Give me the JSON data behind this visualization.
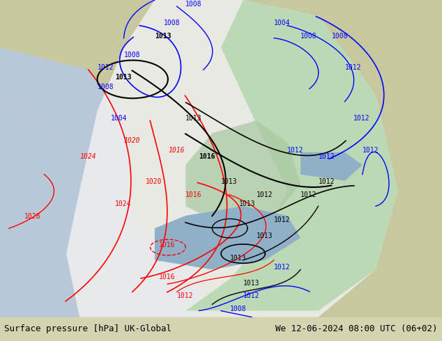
{
  "title_left": "Surface pressure [hPa] UK-Global",
  "title_right": "We 12-06-2024 08:00 UTC (06+02)",
  "background_land": "#c8c8a0",
  "background_sea": "#a0b8d0",
  "fig_width": 6.34,
  "fig_height": 4.9,
  "dpi": 100,
  "bottom_bar_color": "#e8e8e8",
  "bottom_text_color": "#000000",
  "font_family": "monospace"
}
